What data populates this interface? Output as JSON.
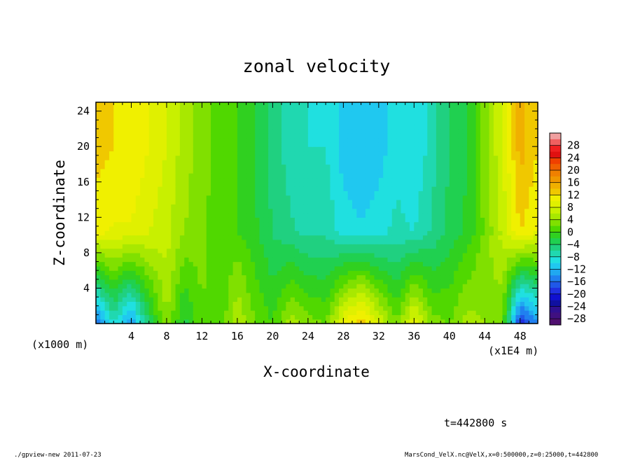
{
  "chart_data": {
    "type": "heatmap",
    "title": "zonal velocity",
    "xlabel": "X-coordinate",
    "ylabel": "Z-coordinate",
    "x_unit_left": "(x1000 m)",
    "x_unit_right": "(x1E4 m)",
    "xlim": [
      0,
      50
    ],
    "ylim": [
      0,
      25
    ],
    "x_ticks": [
      "4",
      "8",
      "12",
      "16",
      "20",
      "24",
      "28",
      "32",
      "36",
      "40",
      "44",
      "48"
    ],
    "y_ticks": [
      "4",
      "8",
      "12",
      "16",
      "20",
      "24"
    ],
    "colorbar_labels": [
      "28",
      "24",
      "20",
      "16",
      "12",
      "8",
      "4",
      "0",
      "−4",
      "−8",
      "−12",
      "−16",
      "−20",
      "−24",
      "−28"
    ],
    "colorbar_levels": [
      32,
      30,
      28,
      26,
      24,
      22,
      20,
      18,
      16,
      14,
      12,
      10,
      8,
      6,
      4,
      2,
      0,
      -2,
      -4,
      -6,
      -8,
      -10,
      -12,
      -14,
      -16,
      -18,
      -20,
      -22,
      -24,
      -26,
      -28,
      -30
    ],
    "colorbar_colors": [
      "#f0a0a0",
      "#f06060",
      "#f02020",
      "#e01010",
      "#f04000",
      "#f06000",
      "#f08000",
      "#f09800",
      "#f0b000",
      "#f0c800",
      "#f0f000",
      "#e0f000",
      "#c8f000",
      "#a8e800",
      "#80e000",
      "#50d800",
      "#30d020",
      "#20d050",
      "#20d080",
      "#20d8b0",
      "#20e0e0",
      "#20c8f0",
      "#20a8f0",
      "#2080f0",
      "#2058e8",
      "#2030e0",
      "#1010d0",
      "#1010a0",
      "#301090",
      "#401080",
      "#501070"
    ],
    "profile_x": [
      0,
      2,
      4,
      6,
      8,
      10,
      12,
      14,
      16,
      18,
      20,
      22,
      24,
      26,
      28,
      30,
      32,
      34,
      36,
      38,
      40,
      42,
      44,
      46,
      48,
      50
    ],
    "upper_profile": [
      13,
      12,
      12,
      10,
      8,
      5,
      3,
      1,
      0,
      -2,
      -5,
      -7,
      -8,
      -8,
      -11,
      -12,
      -11,
      -9,
      -10,
      -7,
      -4,
      -2,
      3,
      8,
      15,
      12
    ],
    "lower_profile": [
      -16,
      -8,
      -14,
      -4,
      4,
      -3,
      2,
      0,
      6,
      2,
      0,
      5,
      3,
      2,
      10,
      14,
      8,
      2,
      10,
      3,
      2,
      5,
      4,
      2,
      -20,
      -14
    ]
  },
  "footer": {
    "time": "t=442800 s",
    "program": "./gpview-new   2011-07-23",
    "source": "MarsCond_VelX.nc@VelX,x=0:500000,z=0:25000,t=442800"
  }
}
